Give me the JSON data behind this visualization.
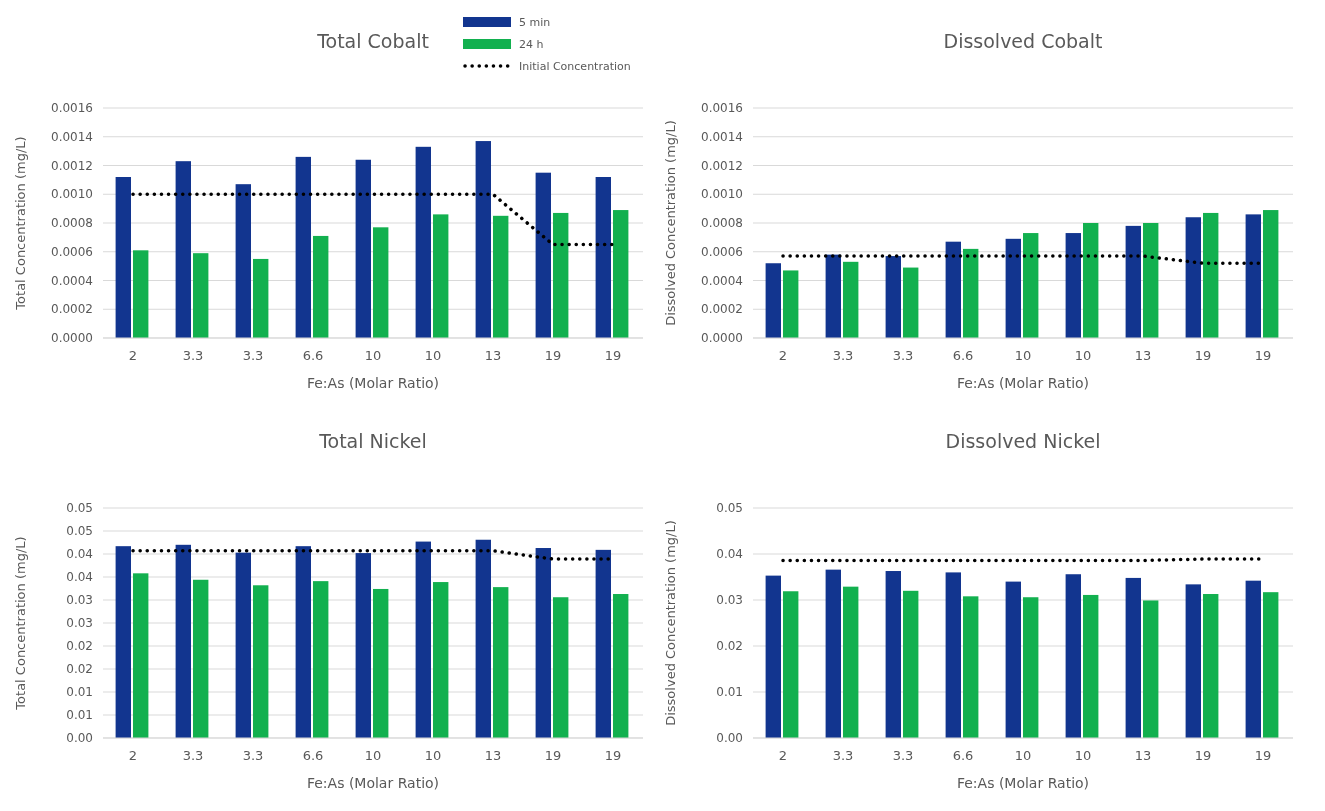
{
  "chart_data": [
    {
      "type": "bar",
      "title": "Total Cobalt",
      "xlabel": "Fe:As (Molar Ratio)",
      "ylabel": "Total Concentration (mg/L)",
      "categories": [
        "2",
        "3.3",
        "3.3",
        "6.6",
        "10",
        "10",
        "13",
        "19",
        "19"
      ],
      "series": [
        {
          "name": "5 min",
          "color": "#12358f",
          "values": [
            0.00112,
            0.00123,
            0.00107,
            0.00126,
            0.00124,
            0.00133,
            0.00137,
            0.00115,
            0.00112
          ]
        },
        {
          "name": "24 h",
          "color": "#12b04f",
          "values": [
            0.00061,
            0.00059,
            0.00055,
            0.00071,
            0.00077,
            0.00086,
            0.00085,
            0.00087,
            0.00089
          ]
        },
        {
          "name": "Initial Concentration",
          "type": "line",
          "color": "#000000",
          "line_style": "dotted",
          "marker": "none",
          "values": [
            0.001,
            0.001,
            0.001,
            0.001,
            0.001,
            0.001,
            0.001,
            0.00065,
            0.00065
          ]
        }
      ],
      "ylim": [
        0,
        0.0016
      ],
      "yticks": [
        {
          "value": 0,
          "label": "0.0000"
        },
        {
          "value": 0.0002,
          "label": "0.0002"
        },
        {
          "value": 0.0004,
          "label": "0.0004"
        },
        {
          "value": 0.0006,
          "label": "0.0006"
        },
        {
          "value": 0.0008,
          "label": "0.0008"
        },
        {
          "value": 0.001,
          "label": "0.0010"
        },
        {
          "value": 0.0012,
          "label": "0.0012"
        },
        {
          "value": 0.0014,
          "label": "0.0014"
        },
        {
          "value": 0.0016,
          "label": "0.0016"
        }
      ],
      "grid": "y",
      "legend": "top right"
    },
    {
      "type": "bar",
      "title": "Dissolved Cobalt",
      "xlabel": "Fe:As (Molar Ratio)",
      "ylabel": "Dissolved Concentration (mg/L)",
      "categories": [
        "2",
        "3.3",
        "3.3",
        "6.6",
        "10",
        "10",
        "13",
        "19",
        "19"
      ],
      "series": [
        {
          "color": "#12358f",
          "values": [
            0.00052,
            0.00058,
            0.00057,
            0.00067,
            0.00069,
            0.00073,
            0.00078,
            0.00084,
            0.00086
          ]
        },
        {
          "color": "#12b04f",
          "values": [
            0.00047,
            0.00053,
            0.00049,
            0.00062,
            0.00073,
            0.0008,
            0.0008,
            0.00087,
            0.00089
          ]
        },
        {
          "type": "line",
          "color": "#000000",
          "line_style": "dotted",
          "marker": "none",
          "values": [
            0.00057,
            0.00057,
            0.00057,
            0.00057,
            0.00057,
            0.00057,
            0.00057,
            0.00052,
            0.00052
          ]
        }
      ],
      "ylim": [
        0,
        0.0016
      ],
      "yticks": [
        {
          "value": 0,
          "label": "0.0000"
        },
        {
          "value": 0.0002,
          "label": "0.0002"
        },
        {
          "value": 0.0004,
          "label": "0.0004"
        },
        {
          "value": 0.0006,
          "label": "0.0006"
        },
        {
          "value": 0.0008,
          "label": "0.0008"
        },
        {
          "value": 0.001,
          "label": "0.0010"
        },
        {
          "value": 0.0012,
          "label": "0.0012"
        },
        {
          "value": 0.0014,
          "label": "0.0014"
        },
        {
          "value": 0.0016,
          "label": "0.0016"
        }
      ],
      "grid": "y"
    },
    {
      "type": "bar",
      "title": "Total Nickel",
      "xlabel": "Fe:As (Molar Ratio)",
      "ylabel": "Total Concentration (mg/L)",
      "categories": [
        "2",
        "3.3",
        "3.3",
        "6.6",
        "10",
        "10",
        "13",
        "19",
        "19"
      ],
      "series": [
        {
          "color": "#12358f",
          "values": [
            0.0417,
            0.042,
            0.0403,
            0.0417,
            0.0402,
            0.0427,
            0.0431,
            0.0413,
            0.0409
          ]
        },
        {
          "color": "#12b04f",
          "values": [
            0.0358,
            0.0344,
            0.0332,
            0.0341,
            0.0324,
            0.0339,
            0.0328,
            0.0306,
            0.0313
          ]
        },
        {
          "type": "line",
          "color": "#000000",
          "line_style": "dotted",
          "marker": "none",
          "values": [
            0.0407,
            0.0407,
            0.0407,
            0.0407,
            0.0407,
            0.0407,
            0.0407,
            0.0389,
            0.0389
          ]
        }
      ],
      "ylim": [
        0,
        0.05
      ],
      "yticks": [
        {
          "value": 0,
          "label": "0.00"
        },
        {
          "value": 0.005,
          "label": "0.01"
        },
        {
          "value": 0.01,
          "label": "0.01"
        },
        {
          "value": 0.015,
          "label": "0.02"
        },
        {
          "value": 0.02,
          "label": "0.02"
        },
        {
          "value": 0.025,
          "label": "0.03"
        },
        {
          "value": 0.03,
          "label": "0.03"
        },
        {
          "value": 0.035,
          "label": "0.04"
        },
        {
          "value": 0.04,
          "label": "0.04"
        },
        {
          "value": 0.045,
          "label": "0.05"
        },
        {
          "value": 0.05,
          "label": "0.05"
        }
      ],
      "grid": "y"
    },
    {
      "type": "bar",
      "title": "Dissolved Nickel",
      "xlabel": "Fe:As (Molar Ratio)",
      "ylabel": "Dissolved Concentration (mg/L)",
      "categories": [
        "2",
        "3.3",
        "3.3",
        "6.6",
        "10",
        "10",
        "13",
        "19",
        "19"
      ],
      "series": [
        {
          "color": "#12358f",
          "values": [
            0.0353,
            0.0366,
            0.0363,
            0.036,
            0.034,
            0.0356,
            0.0348,
            0.0334,
            0.0342
          ]
        },
        {
          "color": "#12b04f",
          "values": [
            0.0319,
            0.0329,
            0.032,
            0.0308,
            0.0306,
            0.0311,
            0.0299,
            0.0313,
            0.0317
          ]
        },
        {
          "type": "line",
          "color": "#000000",
          "line_style": "dotted",
          "marker": "none",
          "values": [
            0.0386,
            0.0386,
            0.0386,
            0.0386,
            0.0386,
            0.0386,
            0.0386,
            0.0389,
            0.0389
          ]
        }
      ],
      "ylim": [
        0,
        0.05
      ],
      "yticks": [
        {
          "value": 0,
          "label": "0.00"
        },
        {
          "value": 0.01,
          "label": "0.01"
        },
        {
          "value": 0.02,
          "label": "0.02"
        },
        {
          "value": 0.03,
          "label": "0.03"
        },
        {
          "value": 0.04,
          "label": "0.04"
        },
        {
          "value": 0.05,
          "label": "0.05"
        }
      ],
      "grid": "y"
    }
  ]
}
